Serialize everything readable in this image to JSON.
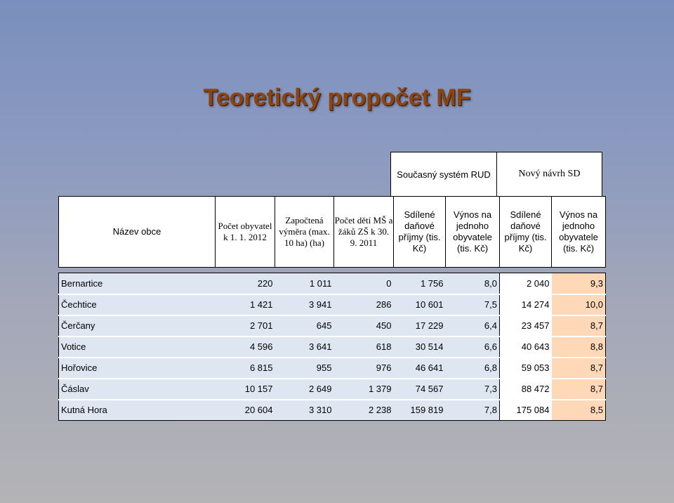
{
  "title": "Teoretický propočet MF",
  "systems": {
    "current": "Současný systém RUD",
    "new": "Nový návrh SD"
  },
  "headers": [
    "Název obce",
    "Počet obyvatel k 1. 1. 2012",
    "Započtená výměra (max. 10 ha) (ha)",
    "Počet dětí MŠ a žáků ZŠ k 30. 9. 2011",
    "Sdílené daňové příjmy (tis. Kč)",
    "Výnos na jednoho obyvatele (tis. Kč)",
    "Sdílené daňové příjmy (tis. Kč)",
    "Výnos na jednoho obyvatele (tis. Kč)"
  ],
  "rows": [
    [
      "Bernartice",
      "220",
      "1 011",
      "0",
      "1 756",
      "8,0",
      "2 040",
      "9,3"
    ],
    [
      "Čechtice",
      "1 421",
      "3 941",
      "286",
      "10 601",
      "7,5",
      "14 274",
      "10,0"
    ],
    [
      "Čerčany",
      "2 701",
      "645",
      "450",
      "17 229",
      "6,4",
      "23 457",
      "8,7"
    ],
    [
      "Votice",
      "4 596",
      "3 641",
      "618",
      "30 514",
      "6,6",
      "40 643",
      "8,8"
    ],
    [
      "Hořovice",
      "6 815",
      "955",
      "976",
      "46 641",
      "6,8",
      "59 053",
      "8,7"
    ],
    [
      "Čáslav",
      "10 157",
      "2 649",
      "1 379",
      "74 567",
      "7,3",
      "88 472",
      "8,7"
    ],
    [
      "Kutná Hora",
      "20 604",
      "3 310",
      "2 238",
      "159 819",
      "7,8",
      "175 084",
      "8,5"
    ]
  ],
  "colors": {
    "title": "#8b4513",
    "row_fill": "#dde6f1",
    "new_per_capita_fill": "#ffd8b8"
  }
}
